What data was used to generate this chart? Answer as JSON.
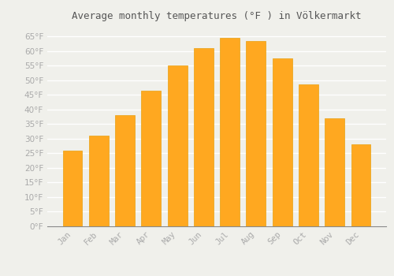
{
  "title": "Average monthly temperatures (°F ) in Völkermarkt",
  "months": [
    "Jan",
    "Feb",
    "Mar",
    "Apr",
    "May",
    "Jun",
    "Jul",
    "Aug",
    "Sep",
    "Oct",
    "Nov",
    "Dec"
  ],
  "values": [
    26,
    31,
    38,
    46.5,
    55,
    61,
    64.5,
    63.5,
    57.5,
    48.5,
    37,
    28
  ],
  "bar_color": "#FFA820",
  "bar_edge_color": "#E8A010",
  "background_color": "#F0F0EB",
  "grid_color": "#FFFFFF",
  "ylim": [
    0,
    68
  ],
  "yticks": [
    0,
    5,
    10,
    15,
    20,
    25,
    30,
    35,
    40,
    45,
    50,
    55,
    60,
    65
  ],
  "tick_label_color": "#AAAAAA",
  "title_color": "#555555",
  "title_fontsize": 9,
  "tick_fontsize": 7.5,
  "fig_width": 5.0,
  "fig_height": 3.5,
  "dpi": 100
}
